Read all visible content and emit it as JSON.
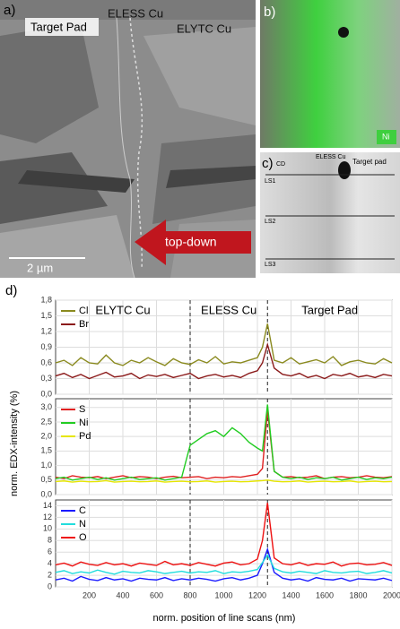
{
  "panel_a": {
    "label": "a)",
    "texts": [
      "Target Pad",
      "ELESS Cu",
      "ELYTC Cu",
      "top-down",
      "2 µm"
    ]
  },
  "panel_b": {
    "label": "b)",
    "tag": "Ni"
  },
  "panel_c": {
    "label": "c)",
    "texts": [
      "CD",
      "ELESS Cu",
      "Target pad",
      "LS1",
      "LS2",
      "LS3"
    ]
  },
  "panel_d": {
    "label": "d)",
    "y_label": "norm. EDX-intensity (%)",
    "x_label": "norm. position of line scans (nm)"
  },
  "chart_data": [
    {
      "type": "line",
      "region_labels": [
        "ELYTC Cu",
        "ELESS Cu",
        "Target Pad"
      ],
      "vlines": [
        800,
        1260
      ],
      "x": [
        0,
        50,
        100,
        150,
        200,
        250,
        300,
        350,
        400,
        450,
        500,
        550,
        600,
        650,
        700,
        750,
        800,
        850,
        900,
        950,
        1000,
        1050,
        1100,
        1150,
        1200,
        1230,
        1260,
        1300,
        1350,
        1400,
        1450,
        1500,
        1550,
        1600,
        1650,
        1700,
        1750,
        1800,
        1850,
        1900,
        1950,
        2000
      ],
      "xlim": [
        0,
        2000
      ],
      "xticks": [
        200,
        400,
        600,
        800,
        1000,
        1200,
        1400,
        1600,
        1800,
        2000
      ],
      "ylim": [
        0,
        1.8
      ],
      "yticks": [
        {
          "value": 0,
          "label": "0,0"
        },
        {
          "value": 0.3,
          "label": "0,3"
        },
        {
          "value": 0.6,
          "label": "0,6"
        },
        {
          "value": 0.9,
          "label": "0,9"
        },
        {
          "value": 1.2,
          "label": "1,2"
        },
        {
          "value": 1.5,
          "label": "1,5"
        },
        {
          "value": 1.8,
          "label": "1,8"
        }
      ],
      "grid": true,
      "series": [
        {
          "name": "Cl",
          "color": "#8a8a1f",
          "values": [
            0.6,
            0.65,
            0.55,
            0.7,
            0.6,
            0.58,
            0.75,
            0.6,
            0.55,
            0.65,
            0.6,
            0.7,
            0.62,
            0.55,
            0.68,
            0.6,
            0.57,
            0.66,
            0.6,
            0.72,
            0.58,
            0.62,
            0.6,
            0.65,
            0.7,
            0.9,
            1.35,
            0.65,
            0.6,
            0.7,
            0.58,
            0.62,
            0.66,
            0.6,
            0.72,
            0.55,
            0.62,
            0.65,
            0.6,
            0.58,
            0.68,
            0.6
          ]
        },
        {
          "name": "Br",
          "color": "#8b1a1a",
          "values": [
            0.35,
            0.4,
            0.32,
            0.38,
            0.3,
            0.36,
            0.42,
            0.33,
            0.35,
            0.4,
            0.3,
            0.37,
            0.34,
            0.38,
            0.32,
            0.36,
            0.4,
            0.3,
            0.35,
            0.38,
            0.33,
            0.36,
            0.32,
            0.4,
            0.45,
            0.6,
            0.95,
            0.5,
            0.38,
            0.35,
            0.4,
            0.32,
            0.36,
            0.3,
            0.38,
            0.35,
            0.4,
            0.33,
            0.36,
            0.32,
            0.38,
            0.35
          ]
        }
      ]
    },
    {
      "type": "line",
      "vlines": [
        800,
        1260
      ],
      "x": [
        0,
        50,
        100,
        150,
        200,
        250,
        300,
        350,
        400,
        450,
        500,
        550,
        600,
        650,
        700,
        750,
        800,
        850,
        900,
        950,
        1000,
        1050,
        1100,
        1150,
        1200,
        1230,
        1260,
        1300,
        1350,
        1400,
        1450,
        1500,
        1550,
        1600,
        1650,
        1700,
        1750,
        1800,
        1850,
        1900,
        1950,
        2000
      ],
      "xlim": [
        0,
        2000
      ],
      "xticks": [
        200,
        400,
        600,
        800,
        1000,
        1200,
        1400,
        1600,
        1800,
        2000
      ],
      "ylim": [
        0,
        3.3
      ],
      "yticks": [
        {
          "value": 0,
          "label": "0,0"
        },
        {
          "value": 0.5,
          "label": "0,5"
        },
        {
          "value": 1,
          "label": "1,0"
        },
        {
          "value": 1.5,
          "label": "1,5"
        },
        {
          "value": 2,
          "label": "2,0"
        },
        {
          "value": 2.5,
          "label": "2,5"
        },
        {
          "value": 3,
          "label": "3,0"
        }
      ],
      "grid": true,
      "series": [
        {
          "name": "S",
          "color": "#e02020",
          "values": [
            0.6,
            0.55,
            0.65,
            0.6,
            0.58,
            0.62,
            0.55,
            0.6,
            0.65,
            0.58,
            0.62,
            0.6,
            0.55,
            0.6,
            0.63,
            0.58,
            0.6,
            0.62,
            0.55,
            0.6,
            0.58,
            0.62,
            0.6,
            0.65,
            0.7,
            0.9,
            2.9,
            0.8,
            0.6,
            0.62,
            0.58,
            0.6,
            0.65,
            0.55,
            0.6,
            0.62,
            0.58,
            0.6,
            0.65,
            0.6,
            0.58,
            0.62
          ]
        },
        {
          "name": "Ni",
          "color": "#22cc22",
          "values": [
            0.55,
            0.6,
            0.5,
            0.55,
            0.6,
            0.52,
            0.58,
            0.5,
            0.55,
            0.6,
            0.52,
            0.55,
            0.58,
            0.5,
            0.55,
            0.6,
            1.7,
            1.9,
            2.1,
            2.2,
            2.0,
            2.3,
            2.1,
            1.8,
            1.6,
            1.5,
            3.1,
            0.8,
            0.6,
            0.55,
            0.6,
            0.52,
            0.58,
            0.55,
            0.6,
            0.5,
            0.55,
            0.6,
            0.52,
            0.58,
            0.55,
            0.6
          ]
        },
        {
          "name": "Pd",
          "color": "#e6e600",
          "values": [
            0.45,
            0.47,
            0.43,
            0.46,
            0.44,
            0.45,
            0.48,
            0.43,
            0.45,
            0.46,
            0.44,
            0.45,
            0.47,
            0.43,
            0.45,
            0.46,
            0.44,
            0.45,
            0.47,
            0.43,
            0.45,
            0.46,
            0.44,
            0.45,
            0.47,
            0.48,
            0.5,
            0.46,
            0.44,
            0.45,
            0.47,
            0.43,
            0.45,
            0.46,
            0.44,
            0.45,
            0.47,
            0.43,
            0.45,
            0.46,
            0.44,
            0.45
          ]
        }
      ]
    },
    {
      "type": "line",
      "vlines": [
        800,
        1260
      ],
      "x": [
        0,
        50,
        100,
        150,
        200,
        250,
        300,
        350,
        400,
        450,
        500,
        550,
        600,
        650,
        700,
        750,
        800,
        850,
        900,
        950,
        1000,
        1050,
        1100,
        1150,
        1200,
        1230,
        1260,
        1300,
        1350,
        1400,
        1450,
        1500,
        1550,
        1600,
        1650,
        1700,
        1750,
        1800,
        1850,
        1900,
        1950,
        2000
      ],
      "xlim": [
        0,
        2000
      ],
      "xticks": [
        200,
        400,
        600,
        800,
        1000,
        1200,
        1400,
        1600,
        1800,
        2000
      ],
      "ylim": [
        0,
        15
      ],
      "yticks": [
        0,
        2,
        4,
        6,
        8,
        10,
        12,
        14
      ],
      "grid": true,
      "series": [
        {
          "name": "C",
          "color": "#1a1aff",
          "values": [
            1.2,
            1.5,
            1,
            1.8,
            1.3,
            1.1,
            1.6,
            1.2,
            1.4,
            1,
            1.5,
            1.3,
            1.2,
            1.6,
            1.1,
            1.4,
            1.2,
            1.5,
            1.3,
            1,
            1.4,
            1.6,
            1.2,
            1.5,
            2,
            4,
            6.5,
            2.5,
            1.5,
            1.2,
            1.4,
            1,
            1.6,
            1.3,
            1.2,
            1.5,
            1,
            1.4,
            1.3,
            1.2,
            1.5,
            1.1
          ]
        },
        {
          "name": "N",
          "color": "#22dddd",
          "values": [
            2.5,
            2.8,
            2.3,
            2.6,
            2.4,
            2.9,
            2.5,
            2.2,
            2.7,
            2.5,
            2.4,
            2.8,
            2.6,
            2.3,
            2.5,
            2.7,
            2.4,
            2.6,
            2.5,
            2.8,
            2.3,
            2.6,
            2.5,
            2.7,
            3,
            4.2,
            5.5,
            3.2,
            2.6,
            2.4,
            2.7,
            2.5,
            2.3,
            2.8,
            2.5,
            2.4,
            2.6,
            2.7,
            2.3,
            2.5,
            2.8,
            2.4
          ]
        },
        {
          "name": "O",
          "color": "#ee1111",
          "values": [
            3.8,
            4.1,
            3.6,
            4.3,
            3.9,
            3.7,
            4.2,
            3.8,
            4,
            3.6,
            4.1,
            3.9,
            3.7,
            4.4,
            3.8,
            4,
            3.7,
            4.2,
            3.9,
            3.6,
            4.1,
            4.3,
            3.8,
            4,
            4.8,
            8,
            14.5,
            5,
            4,
            3.8,
            4.2,
            3.7,
            4,
            3.9,
            4.3,
            3.6,
            4,
            4.1,
            3.8,
            3.9,
            4.2,
            3.7
          ]
        }
      ]
    }
  ]
}
